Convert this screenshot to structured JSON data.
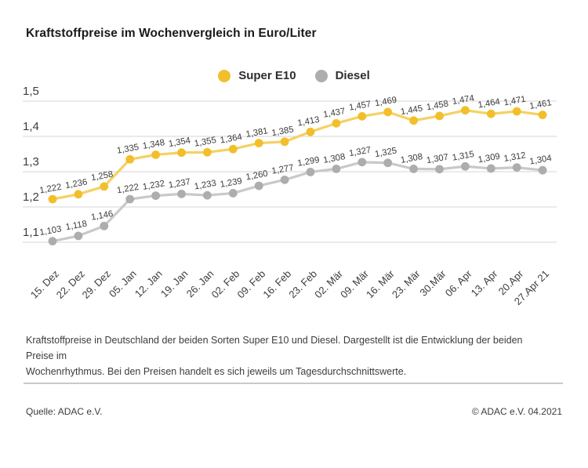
{
  "title": "Kraftstoffpreise im Wochenvergleich in Euro/Liter",
  "chart_data": {
    "type": "line",
    "title": "Kraftstoffpreise im Wochenvergleich in Euro/Liter",
    "categories": [
      "15. Dez",
      "22. Dez",
      "29. Dez",
      "05. Jan",
      "12. Jan",
      "19. Jan",
      "26. Jan",
      "02. Feb",
      "09. Feb",
      "16. Feb",
      "23. Feb",
      "02. Mär",
      "09. Mär",
      "16. Mär",
      "23. Mär",
      "30.Mär",
      "06. Apr",
      "13. Apr",
      "20.Apr",
      "27.Apr 21"
    ],
    "series": [
      {
        "name": "Super E10",
        "dot_color": "#F2BF2B",
        "line_color": "#F5D162",
        "values": [
          1.222,
          1.236,
          1.258,
          1.335,
          1.348,
          1.354,
          1.355,
          1.364,
          1.381,
          1.385,
          1.413,
          1.437,
          1.457,
          1.469,
          1.445,
          1.458,
          1.474,
          1.464,
          1.471,
          1.461
        ]
      },
      {
        "name": "Diesel",
        "dot_color": "#ADADB0",
        "line_color": "#C9C9CB",
        "values": [
          1.103,
          1.118,
          1.146,
          1.222,
          1.232,
          1.237,
          1.233,
          1.239,
          1.26,
          1.277,
          1.299,
          1.308,
          1.327,
          1.325,
          1.308,
          1.307,
          1.315,
          1.309,
          1.312,
          1.304
        ]
      }
    ],
    "yticks": [
      {
        "value": 1.5,
        "label": "1,5"
      },
      {
        "value": 1.4,
        "label": "1,4"
      },
      {
        "value": 1.3,
        "label": "1,3"
      },
      {
        "value": 1.2,
        "label": "1,2"
      },
      {
        "value": 1.1,
        "label": "1,1"
      }
    ],
    "ylim": [
      1.05,
      1.52
    ],
    "grid": true,
    "legend_position": "top",
    "value_label_format": "de-comma-3",
    "unit": "Euro/Liter"
  },
  "description": {
    "line1": "Kraftstoffpreise in Deutschland der beiden Sorten Super E10 und Diesel. Dargestellt ist die Entwicklung der beiden Preise im",
    "line2": "Wochenrhythmus. Bei den Preisen handelt es sich jeweils um Tagesdurchschnittswerte."
  },
  "footer": {
    "source": "Quelle: ADAC e.V.",
    "copyright": "© ADAC e.V. 04.2021"
  },
  "colors": {
    "grid": "#d4d4d4",
    "text": "#3c3c3c",
    "title": "#1a1a1a",
    "divider": "#c9c9c9"
  }
}
